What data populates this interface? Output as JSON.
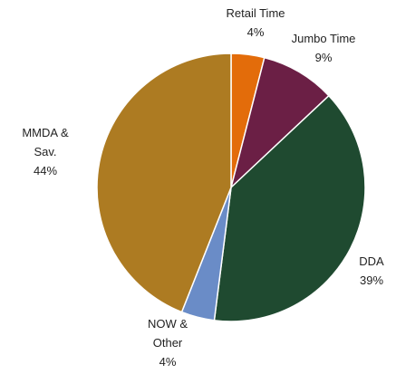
{
  "chart_data": {
    "type": "pie",
    "categories": [
      "Retail Time",
      "Jumbo Time",
      "DDA",
      "NOW & Other",
      "MMDA & Sav."
    ],
    "values": [
      4,
      9,
      39,
      4,
      44
    ],
    "value_labels": [
      "4%",
      "9%",
      "39%",
      "4%",
      "44%"
    ],
    "colors": [
      "#e36c0a",
      "#6b1f45",
      "#1f4a30",
      "#6a8cc7",
      "#ad7b22"
    ]
  }
}
